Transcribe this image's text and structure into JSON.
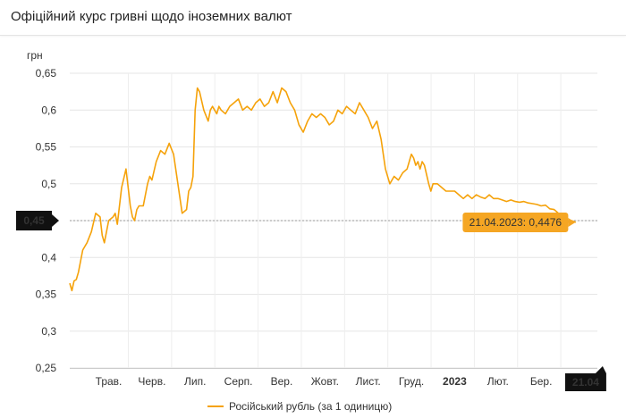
{
  "page": {
    "title": "Офіційний курс гривні щодо іноземних валют"
  },
  "colors": {
    "series": "#f5a20a",
    "grid": "#e6e6e6",
    "dark_badge": "#111111",
    "tooltip_bg": "#f5a623"
  },
  "chart_data": {
    "type": "line",
    "ylabel": "грн",
    "ylim": [
      0.25,
      0.65
    ],
    "yticks": [
      0.25,
      0.3,
      0.35,
      0.4,
      0.45,
      0.5,
      0.55,
      0.6,
      0.65
    ],
    "ytick_labels": [
      "0,25",
      "0,3",
      "0,35",
      "0,4",
      "0,45",
      "0,5",
      "0,55",
      "0,6",
      "0,65"
    ],
    "xlim": [
      0,
      12.2
    ],
    "xticks": [
      {
        "x": 0.9,
        "label": "Трав.",
        "bold": false
      },
      {
        "x": 1.9,
        "label": "Черв.",
        "bold": false
      },
      {
        "x": 2.9,
        "label": "Лип.",
        "bold": false
      },
      {
        "x": 3.9,
        "label": "Серп.",
        "bold": false
      },
      {
        "x": 4.9,
        "label": "Вер.",
        "bold": false
      },
      {
        "x": 5.9,
        "label": "Жовт.",
        "bold": false
      },
      {
        "x": 6.9,
        "label": "Лист.",
        "bold": false
      },
      {
        "x": 7.9,
        "label": "Груд.",
        "bold": false
      },
      {
        "x": 8.9,
        "label": "2023",
        "bold": true
      },
      {
        "x": 9.9,
        "label": "Лют.",
        "bold": false
      },
      {
        "x": 10.9,
        "label": "Бер.",
        "bold": false
      }
    ],
    "grid": true,
    "legend": "bottom",
    "series": [
      {
        "name": "Російський рубль (за 1 одиницю)",
        "x": [
          0,
          0.05,
          0.1,
          0.15,
          0.2,
          0.25,
          0.3,
          0.35,
          0.4,
          0.5,
          0.6,
          0.7,
          0.75,
          0.8,
          0.9,
          1.0,
          1.05,
          1.1,
          1.2,
          1.3,
          1.4,
          1.45,
          1.5,
          1.55,
          1.6,
          1.7,
          1.8,
          1.85,
          1.9,
          2.0,
          2.1,
          2.2,
          2.3,
          2.4,
          2.5,
          2.6,
          2.7,
          2.75,
          2.8,
          2.85,
          2.9,
          2.95,
          3.0,
          3.1,
          3.2,
          3.25,
          3.3,
          3.35,
          3.4,
          3.45,
          3.5,
          3.6,
          3.7,
          3.8,
          3.9,
          4.0,
          4.1,
          4.2,
          4.3,
          4.4,
          4.5,
          4.6,
          4.7,
          4.8,
          4.9,
          5.0,
          5.1,
          5.2,
          5.3,
          5.4,
          5.5,
          5.6,
          5.7,
          5.8,
          5.9,
          6.0,
          6.1,
          6.2,
          6.3,
          6.4,
          6.5,
          6.6,
          6.7,
          6.8,
          6.9,
          7.0,
          7.1,
          7.2,
          7.3,
          7.4,
          7.5,
          7.6,
          7.7,
          7.8,
          7.85,
          7.9,
          7.95,
          8.0,
          8.05,
          8.1,
          8.15,
          8.2,
          8.3,
          8.35,
          8.4,
          8.5,
          8.6,
          8.7,
          8.8,
          8.9,
          9.0,
          9.1,
          9.2,
          9.3,
          9.4,
          9.5,
          9.6,
          9.7,
          9.8,
          9.9,
          10.0,
          10.1,
          10.2,
          10.3,
          10.4,
          10.5,
          10.6,
          10.7,
          10.8,
          10.9,
          11.0,
          11.1,
          11.2,
          11.3,
          11.4,
          11.5,
          11.6,
          11.7
        ],
        "values": [
          0.365,
          0.355,
          0.368,
          0.37,
          0.38,
          0.395,
          0.41,
          0.415,
          0.42,
          0.435,
          0.46,
          0.455,
          0.43,
          0.42,
          0.45,
          0.455,
          0.46,
          0.445,
          0.495,
          0.52,
          0.47,
          0.455,
          0.45,
          0.465,
          0.47,
          0.47,
          0.5,
          0.51,
          0.505,
          0.53,
          0.545,
          0.54,
          0.555,
          0.54,
          0.5,
          0.46,
          0.465,
          0.49,
          0.495,
          0.51,
          0.6,
          0.63,
          0.625,
          0.6,
          0.585,
          0.6,
          0.605,
          0.6,
          0.595,
          0.605,
          0.6,
          0.595,
          0.605,
          0.61,
          0.615,
          0.6,
          0.605,
          0.6,
          0.61,
          0.615,
          0.605,
          0.61,
          0.625,
          0.61,
          0.63,
          0.625,
          0.61,
          0.6,
          0.58,
          0.57,
          0.585,
          0.595,
          0.59,
          0.595,
          0.59,
          0.58,
          0.585,
          0.6,
          0.595,
          0.605,
          0.6,
          0.595,
          0.61,
          0.6,
          0.59,
          0.575,
          0.585,
          0.56,
          0.52,
          0.5,
          0.51,
          0.505,
          0.515,
          0.52,
          0.53,
          0.54,
          0.535,
          0.525,
          0.53,
          0.52,
          0.53,
          0.525,
          0.5,
          0.49,
          0.5,
          0.5,
          0.495,
          0.49,
          0.49,
          0.49,
          0.485,
          0.48,
          0.485,
          0.48,
          0.485,
          0.482,
          0.48,
          0.485,
          0.48,
          0.48,
          0.478,
          0.476,
          0.478,
          0.476,
          0.475,
          0.476,
          0.474,
          0.473,
          0.472,
          0.47,
          0.471,
          0.466,
          0.465,
          0.46,
          0.455,
          0.4476,
          0.45,
          0.4476
        ]
      }
    ],
    "reference_line": {
      "y": 0.45,
      "label": "0,45"
    },
    "tooltip": {
      "x": 11.65,
      "y": 0.4476,
      "text": "21.04.2023: 0,4476"
    },
    "current_x_badge": {
      "x": 11.95,
      "label": "21.04"
    }
  }
}
